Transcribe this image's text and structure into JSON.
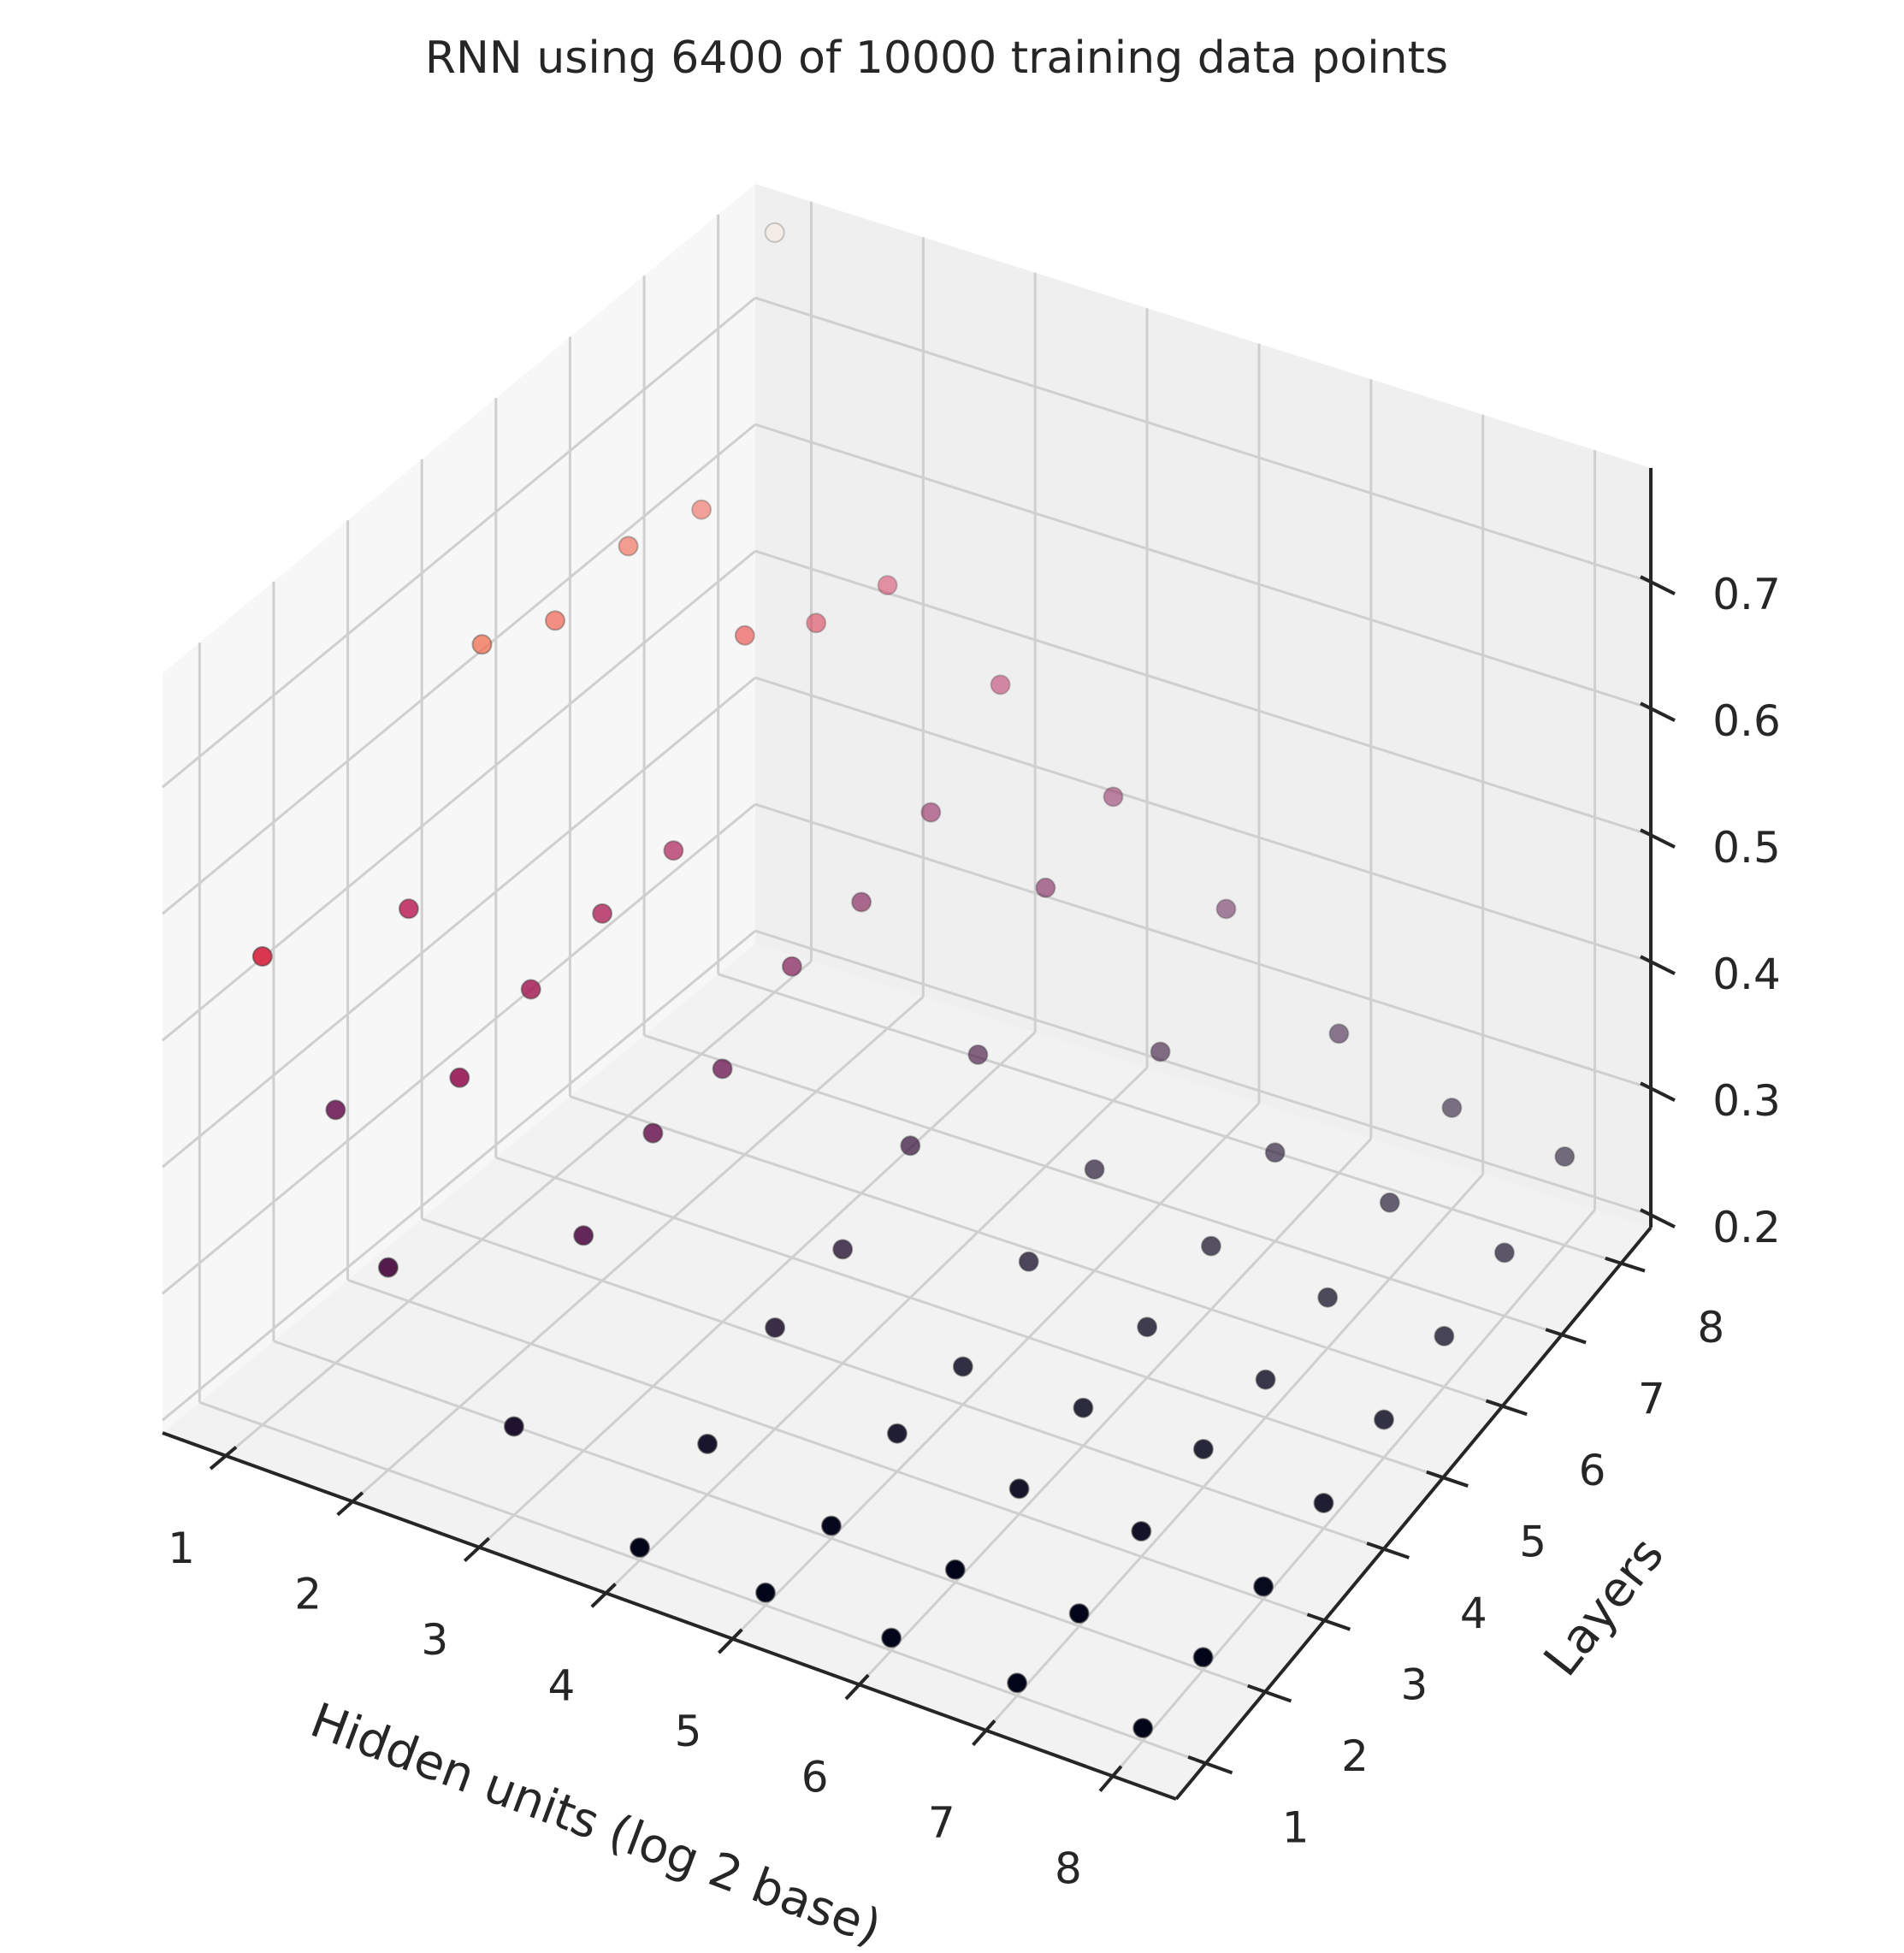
{
  "chart_data": {
    "type": "scatter",
    "projection": "3d",
    "title": "RNN using 6400 of 10000 training data points",
    "xlabel": "Hidden units (log 2 base)",
    "ylabel": "Layers",
    "zlabel": "",
    "x_ticks": [
      "1",
      "2",
      "3",
      "4",
      "5",
      "6",
      "7",
      "8"
    ],
    "y_ticks": [
      "1",
      "2",
      "3",
      "4",
      "5",
      "6",
      "7",
      "8"
    ],
    "z_ticks": [
      "0.2",
      "0.3",
      "0.4",
      "0.5",
      "0.6",
      "0.7"
    ],
    "xlim": [
      0.5,
      8.5
    ],
    "ylim": [
      0.5,
      8.5
    ],
    "zlim": [
      0.19,
      0.79
    ],
    "grid": true,
    "colormap": "rocket",
    "points": [
      {
        "x": 1,
        "y": 1,
        "z": 0.56
      },
      {
        "x": 1,
        "y": 2,
        "z": 0.39
      },
      {
        "x": 1,
        "y": 3,
        "z": 0.5
      },
      {
        "x": 1,
        "y": 4,
        "z": 0.66
      },
      {
        "x": 1,
        "y": 5,
        "z": 0.63
      },
      {
        "x": 1,
        "y": 6,
        "z": 0.64
      },
      {
        "x": 1,
        "y": 7,
        "z": 0.62
      },
      {
        "x": 1,
        "y": 8,
        "z": 0.79
      },
      {
        "x": 2,
        "y": 1,
        "z": 0.35
      },
      {
        "x": 2,
        "y": 2,
        "z": 0.45
      },
      {
        "x": 2,
        "y": 3,
        "z": 0.47
      },
      {
        "x": 2,
        "y": 4,
        "z": 0.48
      },
      {
        "x": 2,
        "y": 5,
        "z": 0.48
      },
      {
        "x": 2,
        "y": 6,
        "z": 0.6
      },
      {
        "x": 2,
        "y": 7,
        "z": 0.56
      },
      {
        "x": 2,
        "y": 8,
        "z": 0.54
      },
      {
        "x": 3,
        "y": 1,
        "z": 0.26
      },
      {
        "x": 3,
        "y": 2,
        "z": 0.36
      },
      {
        "x": 3,
        "y": 3,
        "z": 0.39
      },
      {
        "x": 3,
        "y": 4,
        "z": 0.39
      },
      {
        "x": 3,
        "y": 5,
        "z": 0.42
      },
      {
        "x": 3,
        "y": 6,
        "z": 0.42
      },
      {
        "x": 3,
        "y": 7,
        "z": 0.44
      },
      {
        "x": 3,
        "y": 8,
        "z": 0.49
      },
      {
        "x": 4,
        "y": 1,
        "z": 0.2
      },
      {
        "x": 4,
        "y": 2,
        "z": 0.23
      },
      {
        "x": 4,
        "y": 3,
        "z": 0.27
      },
      {
        "x": 4,
        "y": 4,
        "z": 0.28
      },
      {
        "x": 4,
        "y": 5,
        "z": 0.31
      },
      {
        "x": 4,
        "y": 6,
        "z": 0.33
      },
      {
        "x": 4,
        "y": 7,
        "z": 0.41
      },
      {
        "x": 4,
        "y": 8,
        "z": 0.43
      },
      {
        "x": 5,
        "y": 1,
        "z": 0.2
      },
      {
        "x": 5,
        "y": 2,
        "z": 0.2
      },
      {
        "x": 5,
        "y": 3,
        "z": 0.22
      },
      {
        "x": 5,
        "y": 4,
        "z": 0.22
      },
      {
        "x": 5,
        "y": 5,
        "z": 0.25
      },
      {
        "x": 5,
        "y": 6,
        "z": 0.27
      },
      {
        "x": 5,
        "y": 7,
        "z": 0.31
      },
      {
        "x": 5,
        "y": 8,
        "z": 0.37
      },
      {
        "x": 6,
        "y": 1,
        "z": 0.2
      },
      {
        "x": 6,
        "y": 2,
        "z": 0.2
      },
      {
        "x": 6,
        "y": 3,
        "z": 0.21
      },
      {
        "x": 6,
        "y": 4,
        "z": 0.22
      },
      {
        "x": 6,
        "y": 5,
        "z": 0.23
      },
      {
        "x": 6,
        "y": 6,
        "z": 0.24
      },
      {
        "x": 6,
        "y": 7,
        "z": 0.26
      },
      {
        "x": 6,
        "y": 8,
        "z": 0.3
      },
      {
        "x": 7,
        "y": 1,
        "z": 0.2
      },
      {
        "x": 7,
        "y": 2,
        "z": 0.2
      },
      {
        "x": 7,
        "y": 3,
        "z": 0.21
      },
      {
        "x": 7,
        "y": 4,
        "z": 0.22
      },
      {
        "x": 7,
        "y": 5,
        "z": 0.22
      },
      {
        "x": 7,
        "y": 6,
        "z": 0.23
      },
      {
        "x": 7,
        "y": 7,
        "z": 0.25
      },
      {
        "x": 7,
        "y": 8,
        "z": 0.27
      },
      {
        "x": 8,
        "y": 1,
        "z": 0.2
      },
      {
        "x": 8,
        "y": 2,
        "z": 0.2
      },
      {
        "x": 8,
        "y": 3,
        "z": 0.2
      },
      {
        "x": 8,
        "y": 4,
        "z": 0.21
      },
      {
        "x": 8,
        "y": 5,
        "z": 0.22
      },
      {
        "x": 8,
        "y": 6,
        "z": 0.23
      },
      {
        "x": 8,
        "y": 7,
        "z": 0.24
      },
      {
        "x": 8,
        "y": 8,
        "z": 0.26
      }
    ]
  }
}
